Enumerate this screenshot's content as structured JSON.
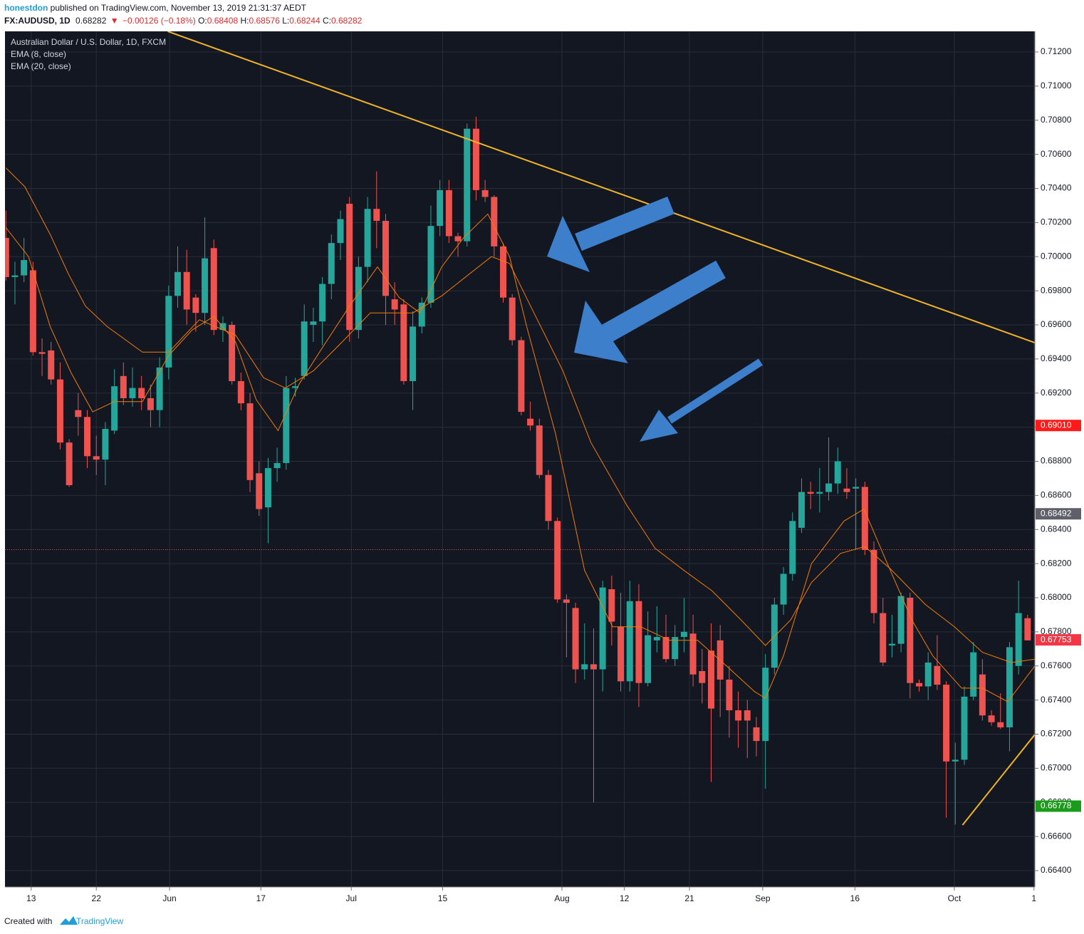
{
  "header": {
    "author": "honestdon",
    "published": " published on TradingView.com, November 13, 2019 21:31:37 AEDT",
    "symbol": "FX:AUDUSD, 1D",
    "last": "0.68282",
    "arrow": "▼",
    "change": "−0.00126 (−0.18%)",
    "ohlc": [
      {
        "label": "O:",
        "value": "0.68408"
      },
      {
        "label": "H:",
        "value": "0.68576"
      },
      {
        "label": "L:",
        "value": "0.68244"
      },
      {
        "label": "C:",
        "value": "0.68282"
      }
    ]
  },
  "footer": {
    "created": "Created with",
    "brand": "TradingView"
  },
  "chart_data": {
    "type": "candlestick",
    "title": "Australian Dollar / U.S. Dollar, 1D, FXCM",
    "up_color": "#26a69a",
    "down_color": "#ef5350",
    "ohlc": [
      [
        0.7011,
        0.7027,
        0.6986,
        0.6988
      ],
      [
        0.6988,
        0.6997,
        0.6972,
        0.6989
      ],
      [
        0.6989,
        0.7011,
        0.6985,
        0.6998
      ],
      [
        0.6992,
        0.6997,
        0.6942,
        0.6944
      ],
      [
        0.6944,
        0.6952,
        0.693,
        0.6943
      ],
      [
        0.6945,
        0.695,
        0.6925,
        0.6928
      ],
      [
        0.6928,
        0.6938,
        0.6887,
        0.6891
      ],
      [
        0.6891,
        0.6893,
        0.6865,
        0.6866
      ],
      [
        0.691,
        0.692,
        0.6895,
        0.6906
      ],
      [
        0.6906,
        0.691,
        0.6876,
        0.6883
      ],
      [
        0.6883,
        0.6895,
        0.6872,
        0.6881
      ],
      [
        0.6881,
        0.6903,
        0.6866,
        0.6899
      ],
      [
        0.6898,
        0.6934,
        0.6896,
        0.6924
      ],
      [
        0.693,
        0.6938,
        0.6913,
        0.6917
      ],
      [
        0.6917,
        0.6935,
        0.6912,
        0.6923
      ],
      [
        0.6923,
        0.693,
        0.691,
        0.6917
      ],
      [
        0.6917,
        0.6925,
        0.69,
        0.691
      ],
      [
        0.691,
        0.6941,
        0.69,
        0.6935
      ],
      [
        0.6935,
        0.6983,
        0.6928,
        0.6977
      ],
      [
        0.6977,
        0.7006,
        0.697,
        0.6991
      ],
      [
        0.6991,
        0.7004,
        0.696,
        0.6969
      ],
      [
        0.6976,
        0.6978,
        0.6956,
        0.6967
      ],
      [
        0.6967,
        0.7023,
        0.696,
        0.6999
      ],
      [
        0.7005,
        0.701,
        0.6954,
        0.6957
      ],
      [
        0.6957,
        0.6965,
        0.695,
        0.6961
      ],
      [
        0.696,
        0.6962,
        0.6925,
        0.6927
      ],
      [
        0.6927,
        0.6932,
        0.691,
        0.6914
      ],
      [
        0.6914,
        0.692,
        0.6862,
        0.6869
      ],
      [
        0.6873,
        0.688,
        0.6848,
        0.6852
      ],
      [
        0.6853,
        0.6882,
        0.6832,
        0.6876
      ],
      [
        0.6876,
        0.6888,
        0.6868,
        0.6879
      ],
      [
        0.6879,
        0.693,
        0.6875,
        0.6923
      ],
      [
        0.6923,
        0.6929,
        0.6918,
        0.6924
      ],
      [
        0.693,
        0.6972,
        0.6928,
        0.6962
      ],
      [
        0.696,
        0.697,
        0.695,
        0.6962
      ],
      [
        0.6962,
        0.6988,
        0.6948,
        0.6984
      ],
      [
        0.6984,
        0.7013,
        0.6975,
        0.7008
      ],
      [
        0.7008,
        0.7027,
        0.6998,
        0.7022
      ],
      [
        0.7031,
        0.7035,
        0.695,
        0.6957
      ],
      [
        0.6957,
        0.7,
        0.6952,
        0.6994
      ],
      [
        0.6994,
        0.7035,
        0.6985,
        0.7028
      ],
      [
        0.7028,
        0.705,
        0.7005,
        0.7021
      ],
      [
        0.7021,
        0.7025,
        0.696,
        0.6977
      ],
      [
        0.6975,
        0.6985,
        0.696,
        0.6969
      ],
      [
        0.6972,
        0.6975,
        0.6925,
        0.6927
      ],
      [
        0.6927,
        0.6968,
        0.691,
        0.6959
      ],
      [
        0.6959,
        0.6976,
        0.6955,
        0.6973
      ],
      [
        0.6973,
        0.703,
        0.697,
        0.7018
      ],
      [
        0.7018,
        0.7045,
        0.7012,
        0.7039
      ],
      [
        0.7039,
        0.7045,
        0.7008,
        0.7012
      ],
      [
        0.7012,
        0.7014,
        0.7,
        0.7009
      ],
      [
        0.7009,
        0.7078,
        0.7006,
        0.7075
      ],
      [
        0.7075,
        0.7082,
        0.7033,
        0.7039
      ],
      [
        0.7039,
        0.7045,
        0.7032,
        0.7035
      ],
      [
        0.7035,
        0.7036,
        0.7,
        0.7006
      ],
      [
        0.7006,
        0.7008,
        0.6973,
        0.6976
      ],
      [
        0.6976,
        0.6978,
        0.6948,
        0.6951
      ],
      [
        0.6951,
        0.6953,
        0.6907,
        0.6909
      ],
      [
        0.6905,
        0.6915,
        0.6898,
        0.6901
      ],
      [
        0.6901,
        0.6905,
        0.687,
        0.6872
      ],
      [
        0.6872,
        0.6875,
        0.684,
        0.6845
      ],
      [
        0.6845,
        0.6847,
        0.6797,
        0.6799
      ],
      [
        0.6799,
        0.6802,
        0.6765,
        0.6797
      ],
      [
        0.6794,
        0.6797,
        0.675,
        0.6758
      ],
      [
        0.6758,
        0.6785,
        0.6752,
        0.6761
      ],
      [
        0.6761,
        0.6782,
        0.668,
        0.6758
      ],
      [
        0.6758,
        0.681,
        0.6745,
        0.6806
      ],
      [
        0.6805,
        0.6813,
        0.6772,
        0.6786
      ],
      [
        0.6783,
        0.6803,
        0.6745,
        0.6751
      ],
      [
        0.6751,
        0.681,
        0.6745,
        0.6798
      ],
      [
        0.6798,
        0.6808,
        0.6736,
        0.675
      ],
      [
        0.675,
        0.6792,
        0.6748,
        0.6778
      ],
      [
        0.6775,
        0.6795,
        0.6768,
        0.6777
      ],
      [
        0.6777,
        0.679,
        0.6762,
        0.6764
      ],
      [
        0.6764,
        0.6784,
        0.676,
        0.6777
      ],
      [
        0.6777,
        0.68,
        0.6768,
        0.678
      ],
      [
        0.6779,
        0.679,
        0.6748,
        0.6755
      ],
      [
        0.6757,
        0.677,
        0.6738,
        0.675
      ],
      [
        0.6769,
        0.6785,
        0.6692,
        0.6735
      ],
      [
        0.6775,
        0.6784,
        0.673,
        0.6752
      ],
      [
        0.6752,
        0.676,
        0.6718,
        0.6734
      ],
      [
        0.6734,
        0.6745,
        0.6712,
        0.6728
      ],
      [
        0.6734,
        0.674,
        0.6706,
        0.6728
      ],
      [
        0.6724,
        0.673,
        0.6707,
        0.6716
      ],
      [
        0.6716,
        0.6767,
        0.6688,
        0.6759
      ],
      [
        0.6759,
        0.68,
        0.6755,
        0.6796
      ],
      [
        0.6796,
        0.6818,
        0.679,
        0.6814
      ],
      [
        0.6814,
        0.685,
        0.681,
        0.6845
      ],
      [
        0.6841,
        0.687,
        0.6838,
        0.6862
      ],
      [
        0.6862,
        0.6868,
        0.6852,
        0.6861
      ],
      [
        0.6861,
        0.6876,
        0.685,
        0.6862
      ],
      [
        0.6862,
        0.6894,
        0.6857,
        0.6867
      ],
      [
        0.6867,
        0.6888,
        0.6861,
        0.688
      ],
      [
        0.6864,
        0.6876,
        0.6858,
        0.6862
      ],
      [
        0.6864,
        0.687,
        0.6828,
        0.6865
      ],
      [
        0.6865,
        0.6868,
        0.6825,
        0.6828
      ],
      [
        0.6828,
        0.6833,
        0.6785,
        0.6791
      ],
      [
        0.6791,
        0.68,
        0.676,
        0.6762
      ],
      [
        0.6772,
        0.679,
        0.6765,
        0.6773
      ],
      [
        0.6773,
        0.6803,
        0.6768,
        0.6801
      ],
      [
        0.68,
        0.6803,
        0.6741,
        0.675
      ],
      [
        0.675,
        0.6752,
        0.6745,
        0.6748
      ],
      [
        0.6748,
        0.6768,
        0.674,
        0.6762
      ],
      [
        0.676,
        0.6778,
        0.6746,
        0.6749
      ],
      [
        0.6749,
        0.6751,
        0.6671,
        0.6704
      ],
      [
        0.6704,
        0.6715,
        0.6667,
        0.6705
      ],
      [
        0.6705,
        0.6748,
        0.6702,
        0.6742
      ],
      [
        0.6742,
        0.6774,
        0.674,
        0.6768
      ],
      [
        0.6755,
        0.6764,
        0.6728,
        0.6731
      ],
      [
        0.6731,
        0.6734,
        0.6725,
        0.6727
      ],
      [
        0.6727,
        0.6744,
        0.6723,
        0.6724
      ],
      [
        0.6724,
        0.6774,
        0.671,
        0.6771
      ],
      [
        0.676,
        0.681,
        0.6755,
        0.6791
      ],
      [
        0.6788,
        0.679,
        0.6775,
        0.6775
      ]
    ],
    "series": [
      {
        "name": "EMA (8, close)",
        "color": "#f57c00",
        "x": [
          0,
          2.5,
          4.9,
          7.2,
          9.6,
          12,
          15.1,
          18,
          20.6,
          23,
          25.4,
          27.7,
          30.1,
          32.4,
          34.8,
          38,
          41.1,
          43.5,
          45.8,
          48.2,
          50.6,
          53.3,
          55.7,
          57.6,
          60.8,
          64,
          67.1,
          70.2,
          73.4,
          76.5,
          79.7,
          82.8,
          84,
          86,
          89.1,
          92.7,
          94.9,
          97,
          100.2,
          102.5,
          105.7,
          108,
          110.8,
          113.8
        ],
        "values": [
          0.7017,
          0.7,
          0.6959,
          0.6932,
          0.6909,
          0.6915,
          0.6915,
          0.6942,
          0.6957,
          0.6965,
          0.695,
          0.6916,
          0.6898,
          0.6925,
          0.6945,
          0.6971,
          0.6994,
          0.6976,
          0.6967,
          0.6994,
          0.7011,
          0.7025,
          0.7,
          0.6959,
          0.6896,
          0.6816,
          0.6783,
          0.6783,
          0.6775,
          0.6775,
          0.676,
          0.6745,
          0.6741,
          0.6766,
          0.682,
          0.6845,
          0.6852,
          0.6826,
          0.6787,
          0.6766,
          0.6747,
          0.6747,
          0.6739,
          0.676
        ]
      },
      {
        "name": "EMA (20, close)",
        "color": "#f57c00",
        "x": [
          0,
          2.1,
          4.9,
          6.9,
          8.8,
          11.2,
          15.1,
          18,
          21.4,
          25.4,
          28.5,
          30.9,
          34,
          37.2,
          40.3,
          45,
          48.2,
          51.3,
          53.7,
          55.7,
          58.4,
          61.6,
          64.7,
          68.7,
          71.8,
          75,
          78.1,
          81.3,
          84,
          86.8,
          89.1,
          92.3,
          95,
          97.8,
          101.7,
          104.9,
          108,
          111.2,
          113.8
        ],
        "values": [
          0.7052,
          0.7041,
          0.7013,
          0.699,
          0.6971,
          0.6959,
          0.6944,
          0.6944,
          0.6963,
          0.6954,
          0.6929,
          0.6923,
          0.6933,
          0.695,
          0.6967,
          0.6967,
          0.6977,
          0.699,
          0.7,
          0.6996,
          0.6967,
          0.6933,
          0.6891,
          0.6854,
          0.6829,
          0.6816,
          0.6804,
          0.6787,
          0.6772,
          0.6787,
          0.6809,
          0.6826,
          0.683,
          0.6817,
          0.6796,
          0.6783,
          0.6768,
          0.6762,
          0.6764
        ]
      }
    ],
    "trend_lines": [
      {
        "color": "#f0b429",
        "x": [
          17.9,
          113.8
        ],
        "values": [
          0.71321,
          0.69495
        ]
      },
      {
        "color": "#f0b429",
        "x": [
          105.8,
          113.8
        ],
        "values": [
          0.66667,
          0.67198
        ]
      }
    ],
    "last_price_line": 0.68282,
    "price_labels": [
      {
        "value": 0.6901,
        "label": "0.69010",
        "color": "#ff1a1a"
      },
      {
        "value": 0.68492,
        "label": "0.68492",
        "color": "#5d606b"
      },
      {
        "value": 0.67753,
        "label": "0.67753",
        "color": "#f23645"
      },
      {
        "value": 0.66778,
        "label": "0.66778",
        "color": "#1a9c1a"
      }
    ],
    "xlim": [
      -0.1,
      113.8
    ],
    "xticks": [
      {
        "value": 2.8,
        "label": "13"
      },
      {
        "value": 10,
        "label": "22"
      },
      {
        "value": 18.1,
        "label": "Jun"
      },
      {
        "value": 28.2,
        "label": "17"
      },
      {
        "value": 38.2,
        "label": "Jul"
      },
      {
        "value": 48.3,
        "label": "15"
      },
      {
        "value": 61.5,
        "label": "Aug"
      },
      {
        "value": 68.4,
        "label": "12"
      },
      {
        "value": 75.6,
        "label": "21"
      },
      {
        "value": 83.7,
        "label": "Sep"
      },
      {
        "value": 93.9,
        "label": "16"
      },
      {
        "value": 104.9,
        "label": "Oct"
      },
      {
        "value": 113.7,
        "label": "1"
      }
    ],
    "ylim": [
      0.66304,
      0.71321
    ],
    "yticks": [
      {
        "value": 0.664,
        "label": "0.66400"
      },
      {
        "value": 0.666,
        "label": "0.66600"
      },
      {
        "value": 0.668,
        "label": "0.66800"
      },
      {
        "value": 0.67,
        "label": "0.67000"
      },
      {
        "value": 0.672,
        "label": "0.67200"
      },
      {
        "value": 0.674,
        "label": "0.67400"
      },
      {
        "value": 0.676,
        "label": "0.67600"
      },
      {
        "value": 0.678,
        "label": "0.67800"
      },
      {
        "value": 0.68,
        "label": "0.68000"
      },
      {
        "value": 0.682,
        "label": "0.68200"
      },
      {
        "value": 0.684,
        "label": "0.68400"
      },
      {
        "value": 0.686,
        "label": "0.68600"
      },
      {
        "value": 0.688,
        "label": "0.68800"
      },
      {
        "value": 0.69,
        "label": "0.69000"
      },
      {
        "value": 0.692,
        "label": "0.69200"
      },
      {
        "value": 0.694,
        "label": "0.69400"
      },
      {
        "value": 0.696,
        "label": "0.69600"
      },
      {
        "value": 0.698,
        "label": "0.69800"
      },
      {
        "value": 0.7,
        "label": "0.70000"
      },
      {
        "value": 0.702,
        "label": "0.70200"
      },
      {
        "value": 0.704,
        "label": "0.70400"
      },
      {
        "value": 0.706,
        "label": "0.70600"
      },
      {
        "value": 0.708,
        "label": "0.70800"
      },
      {
        "value": 0.71,
        "label": "0.71000"
      },
      {
        "value": 0.712,
        "label": "0.71200"
      }
    ],
    "grid": true
  }
}
